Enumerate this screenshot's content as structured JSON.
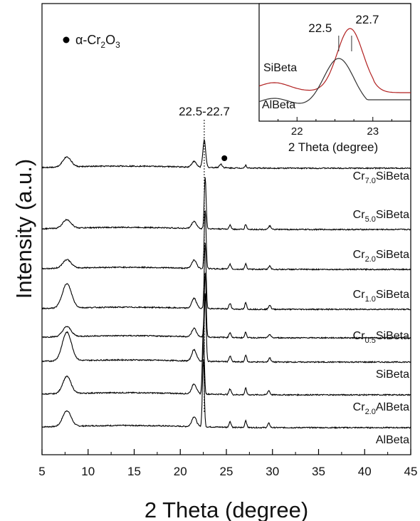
{
  "chart_data": {
    "type": "line",
    "xlabel": "2 Theta (degree)",
    "ylabel": "Intensity (a.u.)",
    "xlim": [
      5,
      45
    ],
    "xticks": [
      "5",
      "10",
      "15",
      "20",
      "25",
      "30",
      "35",
      "40",
      "45"
    ],
    "legend": {
      "symbol": "•",
      "text": "α-Cr",
      "sub1": "2",
      "mid": "O",
      "sub2": "3",
      "placement": "top-left"
    },
    "peak_label": "22.5-22.7",
    "peak_line_x": 22.6,
    "cr2o3_marker": {
      "x": 24.4,
      "series": "Cr7.0SiBeta"
    },
    "series": [
      {
        "name": "AlBeta",
        "prefix": "",
        "sub": "",
        "suffix": "AlBeta",
        "color": "#000000",
        "peaks": [
          {
            "x": 7.7,
            "h": 22,
            "w": 0.45
          },
          {
            "x": 21.5,
            "h": 14,
            "w": 0.25
          },
          {
            "x": 22.5,
            "h": 95,
            "w": 0.1
          },
          {
            "x": 25.4,
            "h": 8,
            "w": 0.12
          },
          {
            "x": 27.1,
            "h": 10,
            "w": 0.1
          },
          {
            "x": 29.6,
            "h": 6,
            "w": 0.12
          }
        ]
      },
      {
        "name": "Cr2.0AlBeta",
        "prefix": "Cr",
        "sub": "2.0",
        "suffix": "AlBeta",
        "color": "#000000",
        "peaks": [
          {
            "x": 7.7,
            "h": 24,
            "w": 0.45
          },
          {
            "x": 21.5,
            "h": 14,
            "w": 0.25
          },
          {
            "x": 22.5,
            "h": 95,
            "w": 0.1
          },
          {
            "x": 25.4,
            "h": 8,
            "w": 0.12
          },
          {
            "x": 27.1,
            "h": 9,
            "w": 0.1
          },
          {
            "x": 29.6,
            "h": 6,
            "w": 0.12
          }
        ]
      },
      {
        "name": "SiBeta",
        "prefix": "",
        "sub": "",
        "suffix": "SiBeta",
        "color": "#000000",
        "peaks": [
          {
            "x": 7.7,
            "h": 40,
            "w": 0.5
          },
          {
            "x": 21.5,
            "h": 16,
            "w": 0.25
          },
          {
            "x": 22.7,
            "h": 95,
            "w": 0.1
          },
          {
            "x": 25.4,
            "h": 8,
            "w": 0.12
          },
          {
            "x": 27.1,
            "h": 10,
            "w": 0.1
          },
          {
            "x": 29.7,
            "h": 6,
            "w": 0.12
          }
        ]
      },
      {
        "name": "Cr0.5SiBeta",
        "prefix": "Cr",
        "sub": "0.5",
        "suffix": "SiBeta",
        "color": "#000000",
        "peaks": [
          {
            "x": 7.7,
            "h": 14,
            "w": 0.45
          },
          {
            "x": 21.5,
            "h": 12,
            "w": 0.25
          },
          {
            "x": 22.7,
            "h": 90,
            "w": 0.1
          },
          {
            "x": 25.4,
            "h": 7,
            "w": 0.12
          },
          {
            "x": 27.1,
            "h": 8,
            "w": 0.1
          },
          {
            "x": 29.7,
            "h": 5,
            "w": 0.12
          }
        ]
      },
      {
        "name": "Cr1.0SiBeta",
        "prefix": "Cr",
        "sub": "1.0",
        "suffix": "SiBeta",
        "color": "#000000",
        "peaks": [
          {
            "x": 7.7,
            "h": 34,
            "w": 0.5
          },
          {
            "x": 21.5,
            "h": 14,
            "w": 0.25
          },
          {
            "x": 22.7,
            "h": 92,
            "w": 0.1
          },
          {
            "x": 25.4,
            "h": 8,
            "w": 0.12
          },
          {
            "x": 27.1,
            "h": 9,
            "w": 0.1
          },
          {
            "x": 29.7,
            "h": 6,
            "w": 0.12
          }
        ]
      },
      {
        "name": "Cr2.0SiBeta",
        "prefix": "Cr",
        "sub": "2.0",
        "suffix": "SiBeta",
        "color": "#000000",
        "peaks": [
          {
            "x": 7.7,
            "h": 12,
            "w": 0.45
          },
          {
            "x": 21.5,
            "h": 12,
            "w": 0.25
          },
          {
            "x": 22.7,
            "h": 82,
            "w": 0.1
          },
          {
            "x": 25.4,
            "h": 7,
            "w": 0.12
          },
          {
            "x": 27.1,
            "h": 8,
            "w": 0.1
          },
          {
            "x": 29.7,
            "h": 5,
            "w": 0.12
          }
        ]
      },
      {
        "name": "Cr5.0SiBeta",
        "prefix": "Cr",
        "sub": "5.0",
        "suffix": "SiBeta",
        "color": "#000000",
        "peaks": [
          {
            "x": 7.7,
            "h": 12,
            "w": 0.45
          },
          {
            "x": 21.5,
            "h": 10,
            "w": 0.25
          },
          {
            "x": 22.7,
            "h": 72,
            "w": 0.1
          },
          {
            "x": 25.4,
            "h": 6,
            "w": 0.12
          },
          {
            "x": 27.1,
            "h": 7,
            "w": 0.1
          },
          {
            "x": 29.7,
            "h": 5,
            "w": 0.12
          }
        ]
      },
      {
        "name": "Cr7.0SiBeta",
        "prefix": "Cr",
        "sub": "7.0",
        "suffix": "SiBeta",
        "color": "#000000",
        "peaks": [
          {
            "x": 7.7,
            "h": 14,
            "w": 0.45
          },
          {
            "x": 21.5,
            "h": 8,
            "w": 0.25
          },
          {
            "x": 22.6,
            "h": 38,
            "w": 0.15
          },
          {
            "x": 24.4,
            "h": 5,
            "w": 0.15
          },
          {
            "x": 27.1,
            "h": 4,
            "w": 0.1
          }
        ]
      }
    ],
    "inset": {
      "type": "line",
      "xlabel": "2 Theta (degree)",
      "xlim": [
        21.5,
        23.5
      ],
      "xticks": [
        "22",
        "23"
      ],
      "annotations": [
        {
          "x": 22.55,
          "text": "22.5"
        },
        {
          "x": 22.72,
          "text": "22.7"
        }
      ],
      "series": [
        {
          "name": "SiBeta",
          "color": "#b22222",
          "peak_x": 22.7,
          "level": "upper"
        },
        {
          "name": "AlBeta",
          "color": "#333333",
          "peak_x": 22.55,
          "level": "lower"
        }
      ]
    }
  }
}
